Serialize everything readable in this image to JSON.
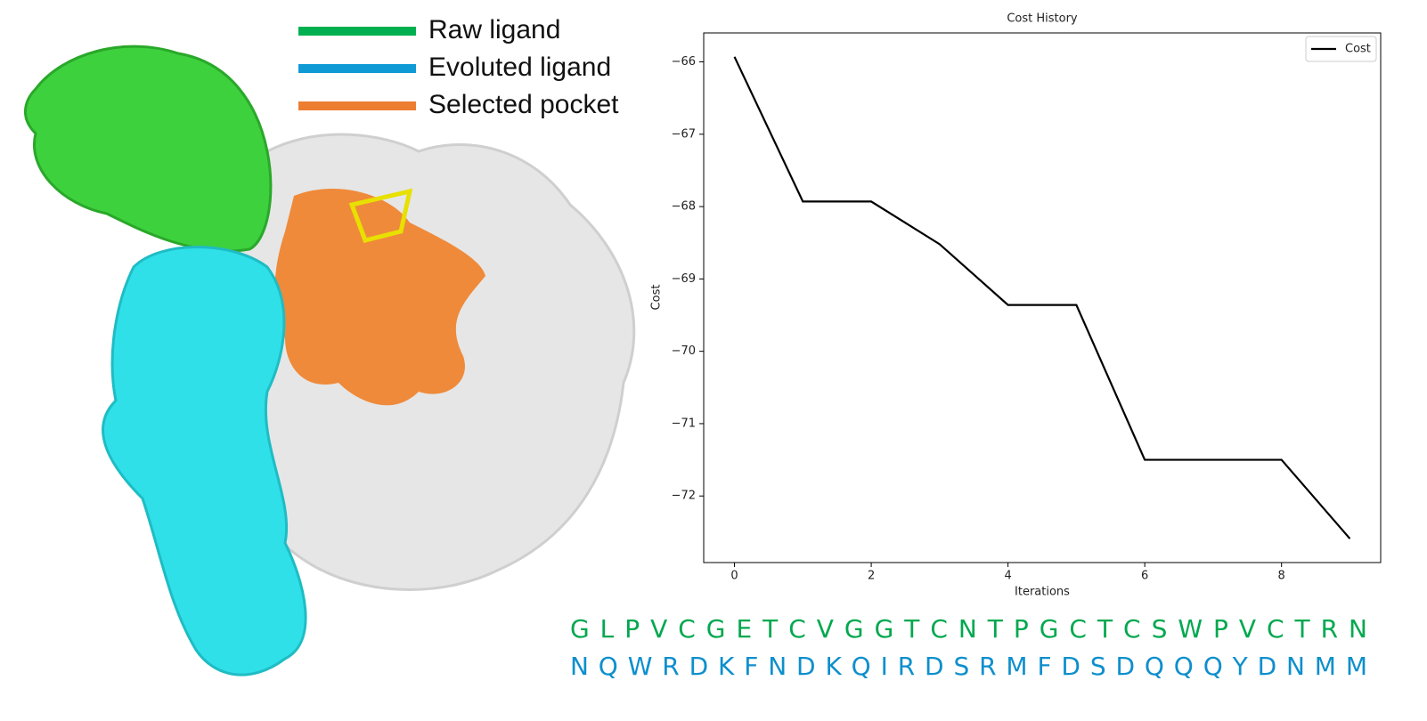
{
  "figure_legend": [
    {
      "label": "Raw ligand",
      "color": "#00b050"
    },
    {
      "label": "Evoluted ligand",
      "color": "#0f9ad6"
    },
    {
      "label": "Selected pocket",
      "color": "#ed7d31"
    }
  ],
  "sequences": [
    {
      "text": "G L P V C G E T C V G G T C N T P G C T C S W P V C T R N",
      "color": "#00a84f"
    },
    {
      "text": "N Q W R D K F N D K Q I R D S R M F D S D Q Q Q Y D N M M",
      "color": "#0e8fcc"
    }
  ],
  "chart_data": {
    "type": "line",
    "title": "Cost History",
    "xlabel": "Iterations",
    "ylabel": "Cost",
    "x": [
      0,
      1,
      2,
      3,
      4,
      5,
      6,
      7,
      8,
      9
    ],
    "series": [
      {
        "name": "Cost",
        "color": "#000000",
        "values": [
          -65.93,
          -67.93,
          -67.93,
          -68.52,
          -69.36,
          -69.36,
          -71.5,
          -71.5,
          -71.5,
          -72.59
        ]
      }
    ],
    "xlim": [
      -0.45,
      9.45
    ],
    "xticks": [
      0,
      2,
      4,
      6,
      8
    ],
    "ylim": [
      -72.92,
      -65.6
    ],
    "yticks": [
      {
        "value": -72,
        "label": "−72"
      },
      {
        "value": -71,
        "label": "−71"
      },
      {
        "value": -70,
        "label": "−70"
      },
      {
        "value": -69,
        "label": "−69"
      },
      {
        "value": -68,
        "label": "−68"
      },
      {
        "value": -67,
        "label": "−67"
      },
      {
        "value": -66,
        "label": "−66"
      }
    ],
    "legend": "upper right",
    "grid": false
  }
}
